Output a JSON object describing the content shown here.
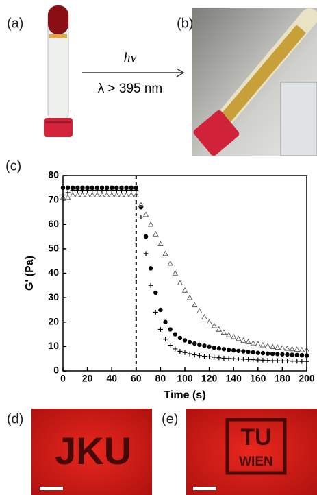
{
  "panels": {
    "a": "(a)",
    "b": "(b)",
    "c": "(c)",
    "d": "(d)",
    "e": "(e)"
  },
  "arrow": {
    "top": "hν",
    "bottom": "λ > 395 nm"
  },
  "photo_d": {
    "text": "JKU"
  },
  "photo_e": {
    "line1": "TU",
    "line2": "WIEN"
  },
  "chart_data": {
    "type": "scatter",
    "xlabel": "Time (s)",
    "ylabel": "G' (Pa)",
    "xlim": [
      0,
      200
    ],
    "ylim": [
      0,
      80
    ],
    "xticks": [
      0,
      20,
      40,
      60,
      80,
      100,
      120,
      140,
      160,
      180,
      200
    ],
    "yticks": [
      0,
      10,
      20,
      30,
      40,
      50,
      60,
      70,
      80
    ],
    "vline_x": 60,
    "x": [
      0,
      4,
      8,
      12,
      16,
      20,
      24,
      28,
      32,
      36,
      40,
      44,
      48,
      52,
      56,
      60,
      64,
      68,
      72,
      76,
      80,
      84,
      88,
      92,
      96,
      100,
      104,
      108,
      112,
      116,
      120,
      124,
      128,
      132,
      136,
      140,
      144,
      148,
      152,
      156,
      160,
      164,
      168,
      172,
      176,
      180,
      184,
      188,
      192,
      196,
      200
    ],
    "series": [
      {
        "marker": "circle",
        "color": "#000000",
        "values": [
          75,
          75,
          75,
          75,
          75,
          75,
          75,
          75,
          75,
          75,
          75,
          75,
          75,
          75,
          75,
          75,
          67,
          55,
          42,
          32,
          25,
          20,
          17,
          15,
          13.5,
          12.5,
          11.8,
          11.2,
          10.7,
          10.3,
          9.9,
          9.5,
          9.2,
          8.9,
          8.6,
          8.4,
          8.2,
          8,
          7.8,
          7.6,
          7.4,
          7.3,
          7.1,
          7,
          6.9,
          6.8,
          6.7,
          6.6,
          6.5,
          6.4,
          6.3
        ]
      },
      {
        "marker": "plus",
        "color": "#000000",
        "values": [
          72,
          73,
          74,
          74,
          74,
          74,
          74,
          74,
          74,
          74,
          74,
          74,
          74,
          74,
          74,
          74,
          63,
          48,
          35,
          24,
          17,
          13,
          10.5,
          9,
          8,
          7.5,
          7,
          6.6,
          6.3,
          6,
          5.8,
          5.6,
          5.4,
          5.2,
          5.1,
          5,
          4.9,
          4.8,
          4.7,
          4.6,
          4.5,
          4.4,
          4.3,
          4.2,
          4.2,
          4.1,
          4.1,
          4,
          4,
          3.9,
          3.9
        ]
      },
      {
        "marker": "triangle",
        "color": "#555555",
        "values": [
          71,
          71,
          72,
          72,
          72,
          72,
          72,
          72,
          72,
          72,
          72,
          72,
          72,
          72,
          72,
          72,
          68,
          64,
          60,
          56,
          52,
          48,
          44,
          40,
          36,
          33,
          30,
          27,
          24.5,
          22,
          20,
          18.5,
          17,
          15.8,
          14.8,
          14,
          13.2,
          12.5,
          11.9,
          11.4,
          11,
          10.6,
          10.2,
          9.9,
          9.6,
          9.4,
          9.2,
          9,
          8.8,
          8.6,
          8.5
        ]
      }
    ]
  }
}
